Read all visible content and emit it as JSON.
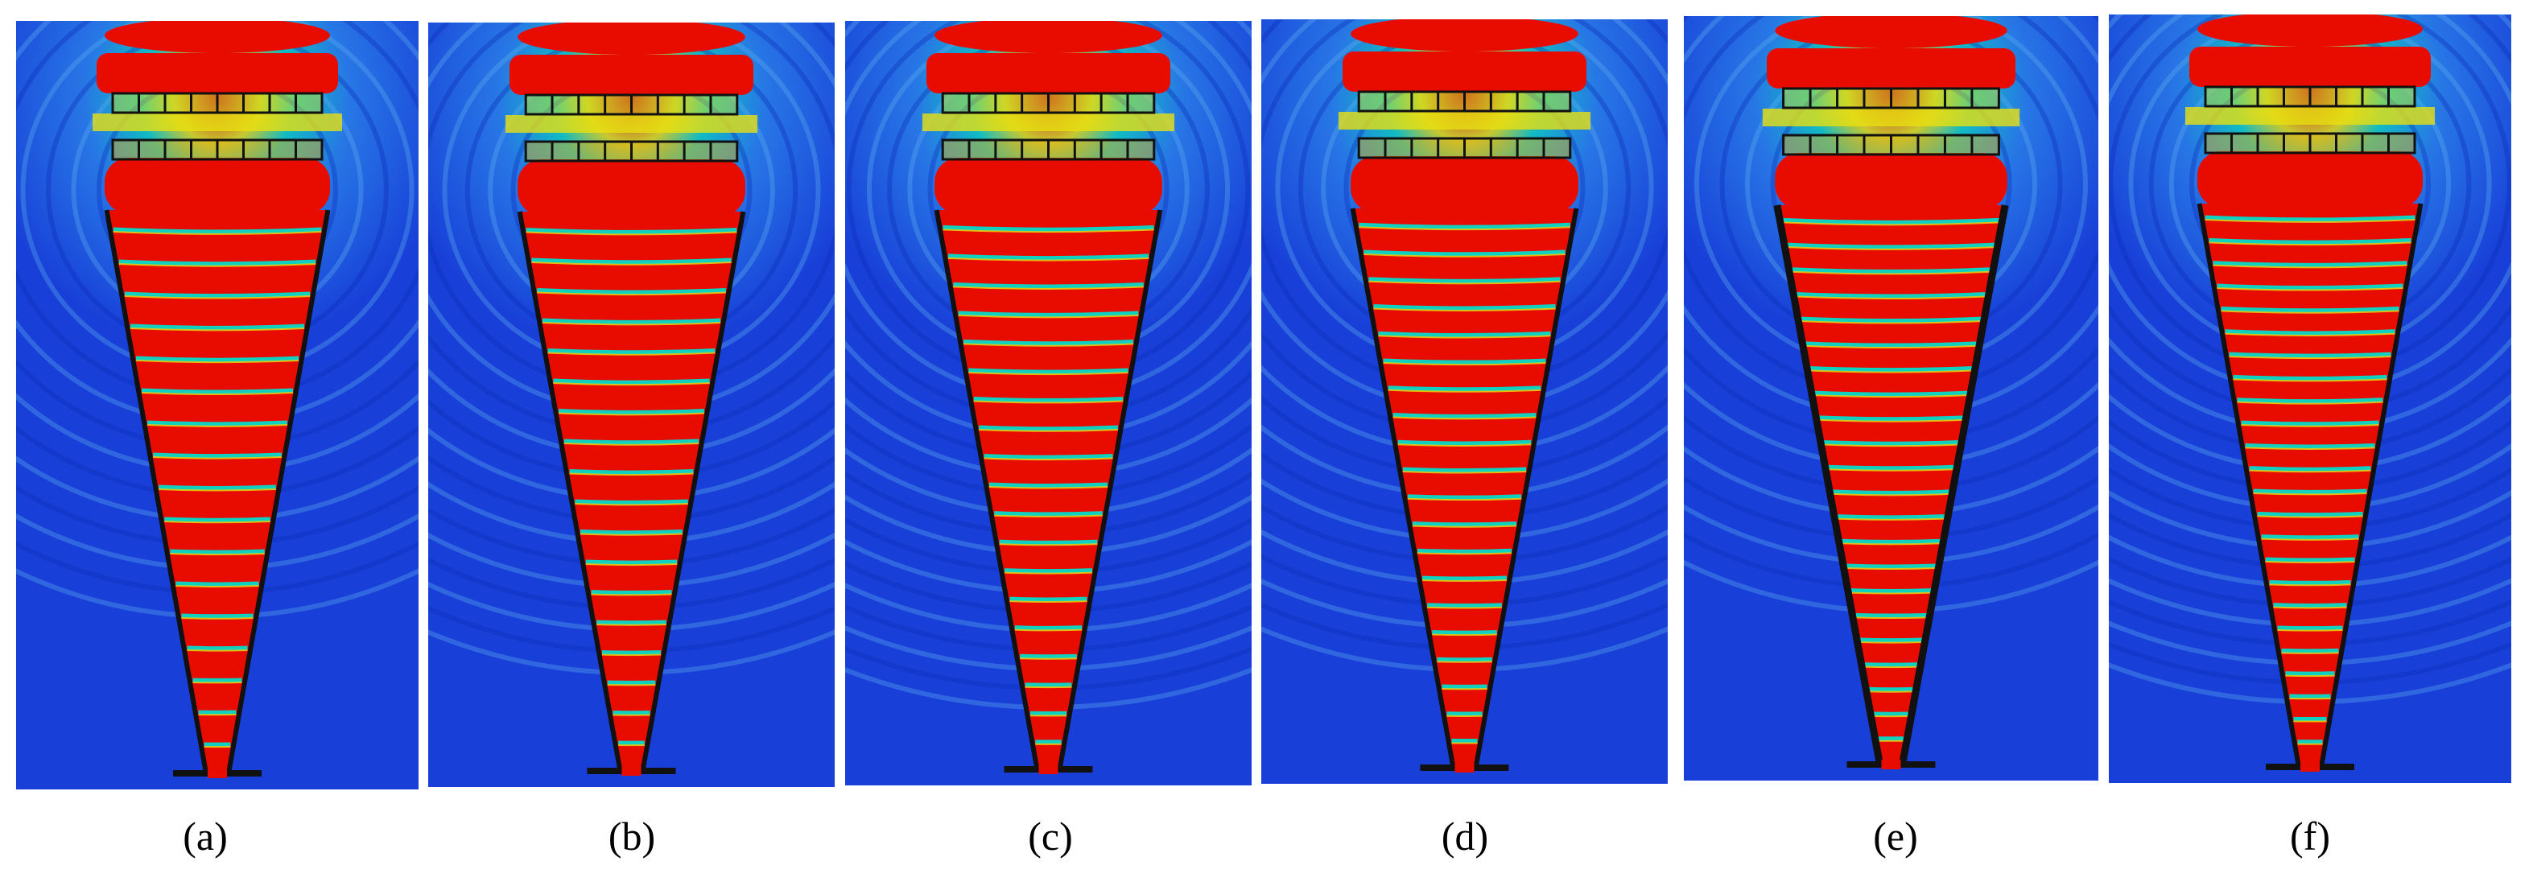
{
  "figure": {
    "panels": [
      {
        "label": "(a)"
      },
      {
        "label": "(b)"
      },
      {
        "label": "(c)"
      },
      {
        "label": "(d)"
      },
      {
        "label": "(e)"
      },
      {
        "label": "(f)"
      }
    ]
  },
  "colors": {
    "background_field": "#1840d8",
    "hot_field": "#e80c00",
    "mid_field": "#10d0c0",
    "warm_field": "#e8e010",
    "outline": "#111111",
    "page_background": "#ffffff"
  }
}
